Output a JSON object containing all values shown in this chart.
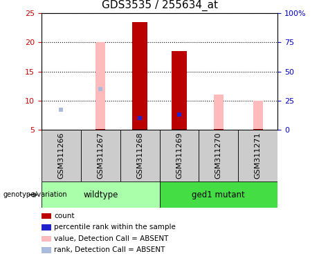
{
  "title": "GDS3535 / 255634_at",
  "samples": [
    "GSM311266",
    "GSM311267",
    "GSM311268",
    "GSM311269",
    "GSM311270",
    "GSM311271"
  ],
  "ylim_left": [
    5,
    25
  ],
  "ylim_right": [
    0,
    100
  ],
  "yticks_left": [
    5,
    10,
    15,
    20,
    25
  ],
  "yticks_right": [
    0,
    25,
    50,
    75,
    100
  ],
  "ytick_labels_right": [
    "0",
    "25",
    "50",
    "75",
    "100%"
  ],
  "count": {
    "GSM311268": 23.5,
    "GSM311269": 18.5
  },
  "percentile_rank": {
    "GSM311268": 10.0,
    "GSM311269": 13.0
  },
  "absent_value": {
    "GSM311267": 20.0,
    "GSM311270": 11.0,
    "GSM311271": 10.0
  },
  "absent_rank": {
    "GSM311266": 8.5,
    "GSM311267": 12.0
  },
  "colors": {
    "count": "#bb0000",
    "percentile_rank": "#2222cc",
    "absent_value": "#ffbbbb",
    "absent_rank": "#aabbdd",
    "wildtype_bg": "#aaffaa",
    "mutant_bg": "#44dd44",
    "axis_left": "#cc0000",
    "axis_right": "#0000cc",
    "label_box": "#cccccc",
    "spine": "#888888"
  },
  "bar_width": 0.38,
  "label_fontsize": 8.5,
  "tick_fontsize": 8,
  "title_fontsize": 11,
  "legend_fontsize": 7.5
}
